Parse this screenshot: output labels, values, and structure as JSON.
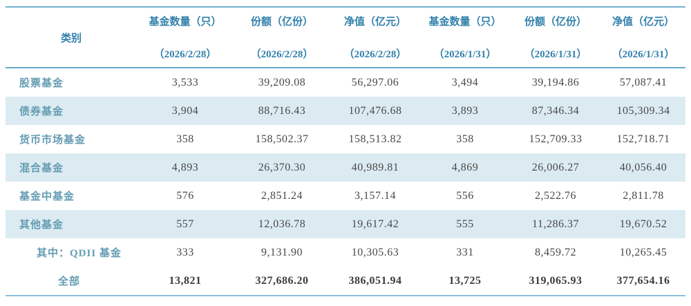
{
  "colors": {
    "header_text": "#3381ac",
    "category_text": "#649cb2",
    "value_text": "#484848",
    "stripe_background": "#dcebf2",
    "rule_top": "#74b2d3",
    "rule_header": "#67a9cc",
    "rule_bottom": "#8cc0da"
  },
  "table": {
    "columns": [
      {
        "label": "类别",
        "sublabel": ""
      },
      {
        "label": "基金数量（只）",
        "sublabel": "（2026/2/28）"
      },
      {
        "label": "份额（亿份）",
        "sublabel": "（2026/2/28）"
      },
      {
        "label": "净值（亿元）",
        "sublabel": "（2026/2/28）"
      },
      {
        "label": "基金数量（只）",
        "sublabel": "（2026/1/31）"
      },
      {
        "label": "份额（亿份）",
        "sublabel": "（2026/1/31）"
      },
      {
        "label": "净值（亿元）",
        "sublabel": "（2026/1/31）"
      }
    ],
    "rows": [
      {
        "category": "股票基金",
        "values": [
          "3,533",
          "39,209.08",
          "56,297.06",
          "3,494",
          "39,194.86",
          "57,087.41"
        ]
      },
      {
        "category": "债券基金",
        "values": [
          "3,904",
          "88,716.43",
          "107,476.68",
          "3,893",
          "87,346.34",
          "105,309.34"
        ]
      },
      {
        "category": "货币市场基金",
        "values": [
          "358",
          "158,502.37",
          "158,513.82",
          "358",
          "152,709.33",
          "152,718.71"
        ]
      },
      {
        "category": "混合基金",
        "values": [
          "4,893",
          "26,370.30",
          "40,989.81",
          "4,869",
          "26,006.27",
          "40,056.40"
        ]
      },
      {
        "category": "基金中基金",
        "values": [
          "576",
          "2,851.24",
          "3,157.14",
          "556",
          "2,522.76",
          "2,811.78"
        ]
      },
      {
        "category": "其他基金",
        "values": [
          "557",
          "12,036.78",
          "19,617.42",
          "555",
          "11,286.37",
          "19,670.52"
        ]
      },
      {
        "category": "其中：QDII 基金",
        "values": [
          "333",
          "9,131.90",
          "10,305.63",
          "331",
          "8,459.72",
          "10,265.45"
        ]
      },
      {
        "category": "全部",
        "values": [
          "13,821",
          "327,686.20",
          "386,051.94",
          "13,725",
          "319,065.93",
          "377,654.16"
        ]
      }
    ]
  }
}
